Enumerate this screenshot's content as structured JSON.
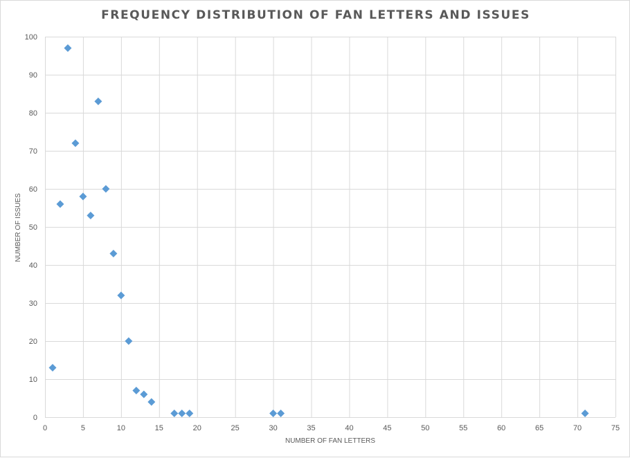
{
  "chart_data": {
    "type": "scatter",
    "title": "FREQUENCY DISTRIBUTION OF FAN LETTERS AND ISSUES",
    "xlabel": "NUMBER OF FAN LETTERS",
    "ylabel": "NUMBER OF ISSUES",
    "xlim": [
      0,
      75
    ],
    "ylim": [
      0,
      100
    ],
    "x_ticks": [
      0,
      5,
      10,
      15,
      20,
      25,
      30,
      35,
      40,
      45,
      50,
      55,
      60,
      65,
      70,
      75
    ],
    "y_ticks": [
      0,
      10,
      20,
      30,
      40,
      50,
      60,
      70,
      80,
      90,
      100
    ],
    "grid": true,
    "legend": "none",
    "marker": "diamond",
    "color": "#5b9bd5",
    "points": [
      {
        "x": 1,
        "y": 13
      },
      {
        "x": 2,
        "y": 56
      },
      {
        "x": 3,
        "y": 97
      },
      {
        "x": 4,
        "y": 72
      },
      {
        "x": 5,
        "y": 58
      },
      {
        "x": 6,
        "y": 53
      },
      {
        "x": 7,
        "y": 83
      },
      {
        "x": 8,
        "y": 60
      },
      {
        "x": 9,
        "y": 43
      },
      {
        "x": 10,
        "y": 32
      },
      {
        "x": 11,
        "y": 20
      },
      {
        "x": 12,
        "y": 7
      },
      {
        "x": 13,
        "y": 6
      },
      {
        "x": 14,
        "y": 4
      },
      {
        "x": 17,
        "y": 1
      },
      {
        "x": 18,
        "y": 1
      },
      {
        "x": 19,
        "y": 1
      },
      {
        "x": 30,
        "y": 1
      },
      {
        "x": 31,
        "y": 1
      },
      {
        "x": 71,
        "y": 1
      }
    ]
  }
}
